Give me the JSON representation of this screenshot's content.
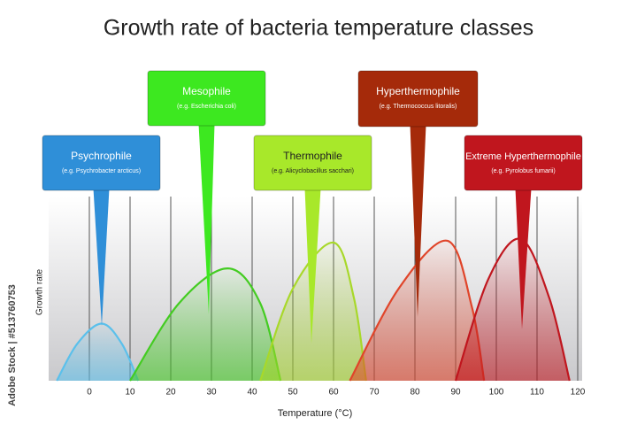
{
  "chart_data": {
    "type": "line",
    "title": "Growth rate of bacteria temperature classes",
    "x_label": "Temperature (°C)",
    "y_label": "Growth rate",
    "watermark": "Adobe Stock | #513760753",
    "xlim": [
      -10,
      120
    ],
    "xticks": [
      0,
      10,
      20,
      30,
      40,
      50,
      60,
      70,
      80,
      90,
      100,
      110,
      120
    ],
    "ylim": [
      0,
      1
    ],
    "grid": true,
    "series": [
      {
        "name": "Psychrophile",
        "example": "(e.g. Psychrobacter arcticus)",
        "color": "#5bc0eb",
        "box_color": "#2f8fd8",
        "x": [
          -8,
          -3,
          3,
          8,
          12
        ],
        "values": [
          0,
          0.2,
          0.31,
          0.2,
          0
        ]
      },
      {
        "name": "Mesophile",
        "example": "(e.g. Escherichia coli)",
        "color": "#44cc22",
        "box_color": "#3de820",
        "x": [
          10,
          22,
          34,
          42,
          47
        ],
        "values": [
          0,
          0.42,
          0.61,
          0.42,
          0
        ]
      },
      {
        "name": "Thermophile",
        "example": "(e.g. Alicyclobacillus sacchari)",
        "color": "#a8d82a",
        "box_color": "#a8e82a",
        "x": [
          42,
          50,
          60,
          65,
          68
        ],
        "values": [
          0,
          0.5,
          0.75,
          0.45,
          0
        ]
      },
      {
        "name": "Hyperthermophile",
        "example": "(e.g. Thermococcus litoralis)",
        "color": "#e0452a",
        "box_color": "#a52a0a",
        "x": [
          64,
          76,
          88,
          94,
          97
        ],
        "values": [
          0,
          0.5,
          0.76,
          0.4,
          0
        ]
      },
      {
        "name": "Extreme Hyperthermophile",
        "example": "(e.g. Pyrolobus fumarii)",
        "color": "#c0161e",
        "box_color": "#c0161e",
        "x": [
          90,
          98,
          106,
          113,
          118
        ],
        "values": [
          0,
          0.55,
          0.77,
          0.45,
          0
        ]
      }
    ]
  }
}
